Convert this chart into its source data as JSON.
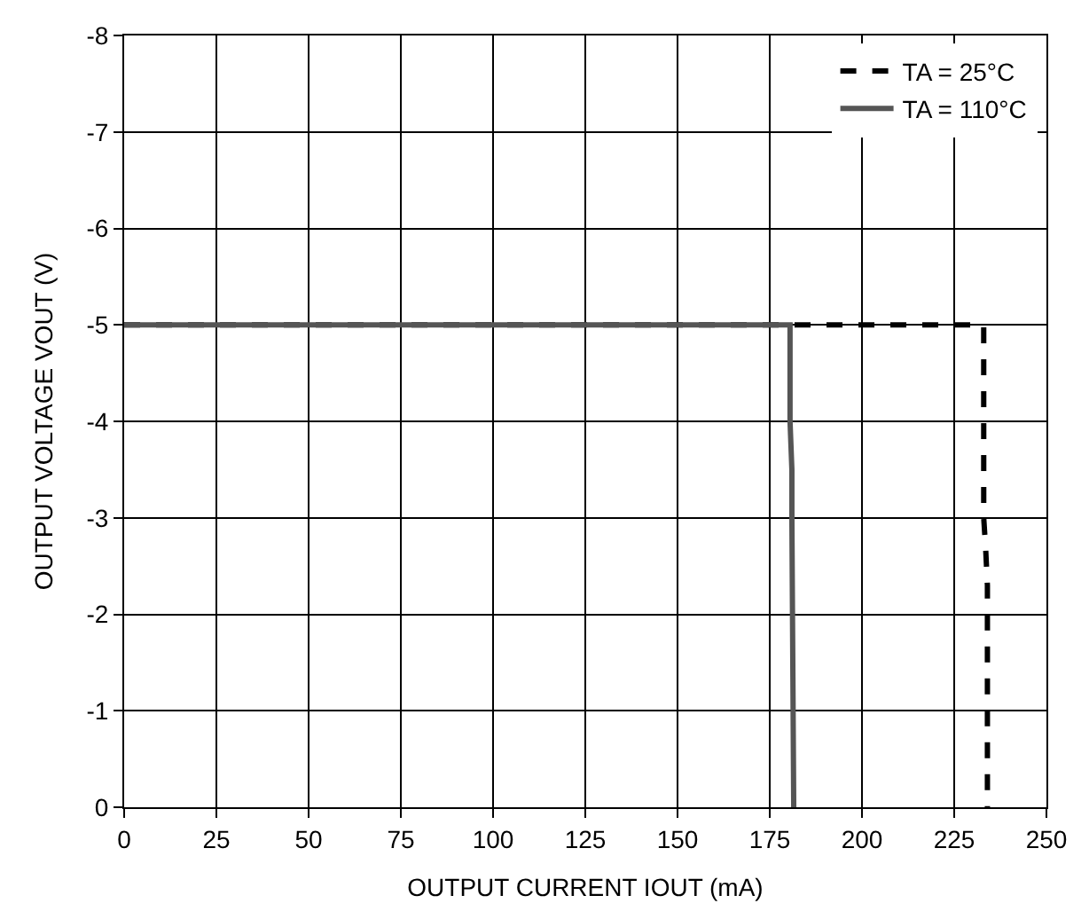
{
  "chart_data": {
    "type": "line",
    "xlabel": "OUTPUT CURRENT IOUT (mA)",
    "ylabel": "OUTPUT VOLTAGE VOUT (V)",
    "series": [
      {
        "name": "TA = 25°C",
        "color": "#000000",
        "line_style": "dashed",
        "x": [
          0,
          233,
          233,
          233.5,
          234,
          234
        ],
        "values": [
          -5,
          -5,
          -3,
          -2.7,
          -2.3,
          0
        ]
      },
      {
        "name": "TA = 110°C",
        "color": "#555555",
        "line_style": "solid",
        "x": [
          0,
          180.5,
          180.5,
          181,
          181,
          181.5
        ],
        "values": [
          -5,
          -5,
          -4,
          -3.5,
          -3,
          0
        ]
      }
    ],
    "xlim": [
      0,
      250
    ],
    "xticks": [
      0,
      25,
      50,
      75,
      100,
      125,
      150,
      175,
      200,
      225,
      250
    ],
    "ylim": [
      0,
      -8
    ],
    "yticks": [
      0,
      -1,
      -2,
      -3,
      -4,
      -5,
      -6,
      -7,
      -8
    ],
    "grid": true,
    "legend": "top right",
    "marker": "none"
  }
}
